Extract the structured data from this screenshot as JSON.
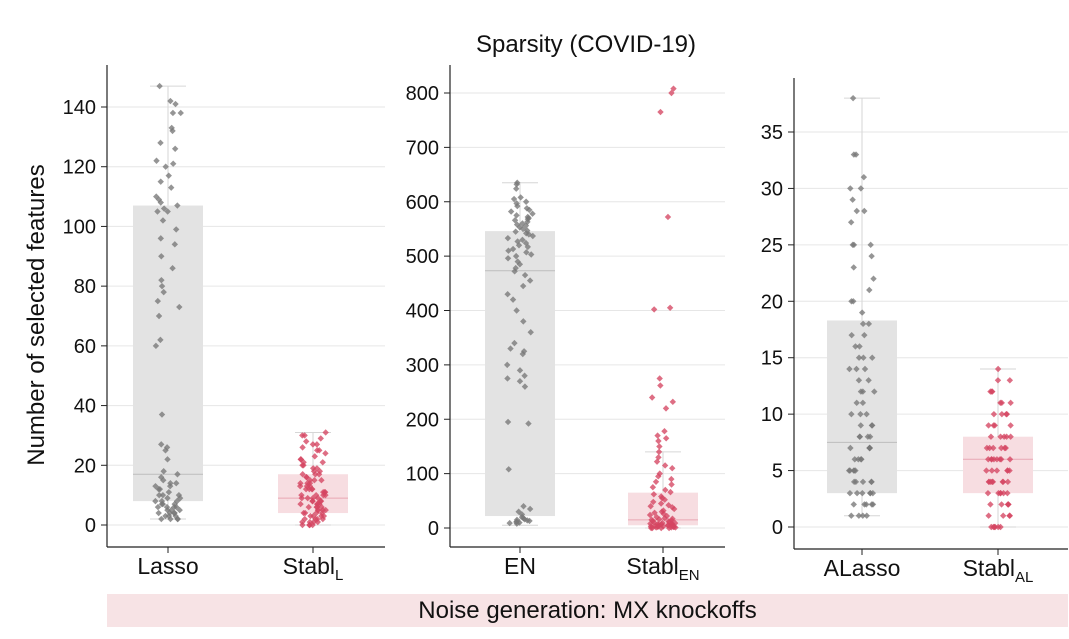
{
  "figure": {
    "title": "Sparsity (COVID-19)",
    "ylabel": "Number of selected features"
  },
  "footer": {
    "label": "Noise generation: MX knockoffs"
  },
  "colors": {
    "gray_box": "#e3e3e3",
    "gray_point": "#777777",
    "red_box": "#f7dde1",
    "red_point": "#d54562",
    "axis": "#222222",
    "grid": "#e6e6e6",
    "banner": "#f7e3e5"
  },
  "chart_data": [
    {
      "type": "box-strip",
      "title": "",
      "ylim": [
        -5,
        150
      ],
      "yticks": [
        0,
        20,
        40,
        60,
        80,
        100,
        120,
        140
      ],
      "grid": true,
      "categories": [
        {
          "base": "Lasso",
          "sub": "",
          "color": "gray",
          "box": {
            "q1": 8,
            "median": 17,
            "q3": 107,
            "whisker_low": 2,
            "whisker_high": 147
          },
          "points": [
            147,
            142,
            141,
            138,
            138,
            133,
            132,
            128,
            126,
            122,
            121,
            120,
            117,
            115,
            113,
            110,
            109,
            108,
            107,
            106,
            105,
            105,
            102,
            99,
            96,
            94,
            90,
            86,
            82,
            80,
            78,
            75,
            73,
            70,
            62,
            60,
            37,
            27,
            26,
            25,
            22,
            18,
            17,
            16,
            15,
            14,
            14,
            13,
            13,
            12,
            12,
            11,
            10,
            10,
            10,
            9,
            9,
            8,
            8,
            8,
            7,
            7,
            7,
            6,
            6,
            6,
            6,
            5,
            5,
            5,
            4,
            4,
            4,
            4,
            3,
            3,
            3,
            2,
            2,
            2,
            2
          ]
        },
        {
          "base": "Stabl",
          "sub": "L",
          "color": "red",
          "box": {
            "q1": 4,
            "median": 9,
            "q3": 17,
            "whisker_low": 0,
            "whisker_high": 31
          },
          "points": [
            31,
            30,
            30,
            29,
            28,
            27,
            27,
            26,
            25,
            25,
            24,
            23,
            22,
            22,
            21,
            21,
            20,
            20,
            19,
            19,
            18,
            18,
            17,
            17,
            17,
            16,
            16,
            15,
            15,
            15,
            14,
            14,
            14,
            13,
            13,
            13,
            12,
            12,
            12,
            12,
            11,
            11,
            11,
            10,
            10,
            10,
            10,
            9,
            9,
            9,
            9,
            8,
            8,
            8,
            8,
            7,
            7,
            7,
            7,
            6,
            6,
            6,
            6,
            5,
            5,
            5,
            5,
            4,
            4,
            4,
            4,
            3,
            3,
            3,
            3,
            2,
            2,
            2,
            2,
            1,
            1,
            1,
            1,
            0,
            0,
            0,
            0
          ]
        }
      ]
    },
    {
      "type": "box-strip",
      "title": "",
      "ylim": [
        -30,
        850
      ],
      "yticks": [
        0,
        100,
        200,
        300,
        400,
        500,
        600,
        700,
        800
      ],
      "grid": true,
      "categories": [
        {
          "base": "EN",
          "sub": "",
          "color": "gray",
          "box": {
            "q1": 22,
            "median": 473,
            "q3": 546,
            "whisker_low": 5,
            "whisker_high": 635
          },
          "points": [
            635,
            632,
            624,
            608,
            605,
            600,
            597,
            592,
            588,
            585,
            582,
            578,
            575,
            572,
            570,
            568,
            566,
            563,
            560,
            558,
            556,
            553,
            550,
            547,
            545,
            542,
            540,
            537,
            533,
            530,
            527,
            524,
            520,
            517,
            513,
            510,
            507,
            503,
            500,
            496,
            490,
            485,
            478,
            472,
            465,
            455,
            445,
            430,
            420,
            400,
            380,
            360,
            340,
            330,
            325,
            320,
            300,
            290,
            280,
            275,
            270,
            260,
            195,
            192,
            108,
            40,
            35,
            30,
            25,
            20,
            18,
            16,
            15,
            14,
            13,
            12,
            11,
            10,
            9,
            8
          ]
        },
        {
          "base": "Stabl",
          "sub": "EN",
          "color": "red",
          "box": {
            "q1": 5,
            "median": 15,
            "q3": 65,
            "whisker_low": 0,
            "whisker_high": 140
          },
          "points": [
            808,
            800,
            765,
            572,
            405,
            402,
            275,
            262,
            240,
            232,
            220,
            178,
            170,
            165,
            160,
            150,
            140,
            130,
            122,
            115,
            110,
            100,
            95,
            90,
            85,
            80,
            75,
            70,
            66,
            62,
            58,
            55,
            52,
            48,
            45,
            42,
            40,
            38,
            35,
            32,
            30,
            28,
            26,
            24,
            22,
            20,
            18,
            17,
            16,
            15,
            14,
            13,
            12,
            11,
            10,
            9,
            9,
            8,
            8,
            7,
            7,
            6,
            6,
            5,
            5,
            5,
            4,
            4,
            4,
            3,
            3,
            3,
            2,
            2,
            2,
            1,
            1,
            1,
            0,
            0,
            0,
            0
          ]
        }
      ]
    },
    {
      "type": "box-strip",
      "title": "",
      "ylim": [
        -1,
        40
      ],
      "yticks": [
        0,
        5,
        10,
        15,
        20,
        25,
        30,
        35
      ],
      "grid": true,
      "categories": [
        {
          "base": "ALasso",
          "sub": "",
          "color": "gray",
          "box": {
            "q1": 3,
            "median": 7.5,
            "q3": 18.3,
            "whisker_low": 1,
            "whisker_high": 38
          },
          "points": [
            38,
            33,
            33,
            31,
            30,
            30,
            29,
            28,
            28,
            27,
            25,
            25,
            25,
            24,
            23,
            22,
            21,
            20,
            20,
            19,
            18,
            18,
            17,
            17,
            16,
            16,
            15,
            15,
            15,
            14,
            14,
            14,
            13,
            13,
            12,
            12,
            12,
            11,
            11,
            10,
            10,
            10,
            9,
            9,
            9,
            8,
            8,
            8,
            8,
            7,
            7,
            7,
            7,
            7,
            6,
            6,
            6,
            6,
            5,
            5,
            5,
            5,
            5,
            4,
            4,
            4,
            4,
            4,
            3,
            3,
            3,
            3,
            3,
            3,
            2,
            2,
            2,
            2,
            2,
            1,
            1,
            1,
            1
          ]
        },
        {
          "base": "Stabl",
          "sub": "AL",
          "color": "red",
          "box": {
            "q1": 3,
            "median": 6,
            "q3": 8,
            "whisker_low": 0,
            "whisker_high": 14
          },
          "points": [
            14,
            13,
            13,
            12,
            12,
            12,
            11,
            11,
            11,
            10,
            10,
            10,
            10,
            9,
            9,
            9,
            9,
            8,
            8,
            8,
            8,
            8,
            7,
            7,
            7,
            7,
            7,
            7,
            6,
            6,
            6,
            6,
            6,
            6,
            6,
            6,
            5,
            5,
            5,
            5,
            5,
            5,
            4,
            4,
            4,
            4,
            4,
            4,
            4,
            4,
            3,
            3,
            3,
            3,
            3,
            3,
            2,
            2,
            2,
            2,
            2,
            1,
            1,
            1,
            1,
            0,
            0,
            0,
            0,
            0,
            0
          ]
        }
      ]
    }
  ]
}
